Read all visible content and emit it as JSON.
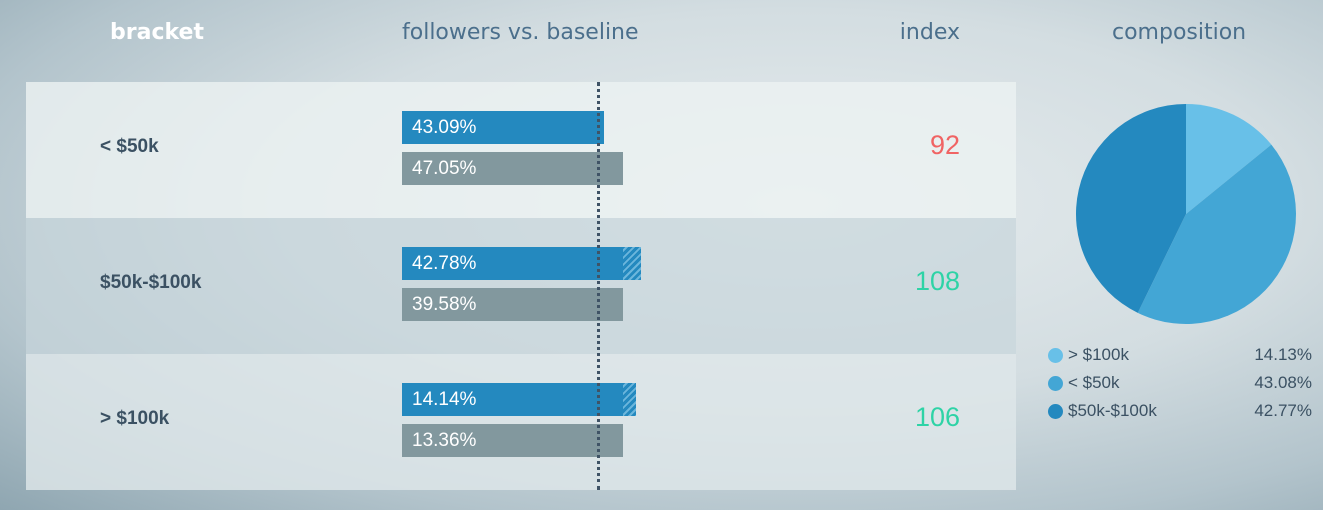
{
  "headers": {
    "bracket": "bracket",
    "followers": "followers vs. baseline",
    "index": "index",
    "composition": "composition"
  },
  "colors": {
    "followers_bar": "#2489bf",
    "baseline_bar": "#82989e",
    "index_low": "#f06464",
    "index_high": "#2ed3a6",
    "pie": [
      "#68c0e8",
      "#43a6d5",
      "#2489bf"
    ]
  },
  "rows": [
    {
      "bracket": "< $50k",
      "followers_label": "43.09%",
      "baseline_label": "47.05%",
      "index": "92"
    },
    {
      "bracket": "$50k-$100k",
      "followers_label": "42.78%",
      "baseline_label": "39.58%",
      "index": "108"
    },
    {
      "bracket": "> $100k",
      "followers_label": "14.14%",
      "baseline_label": "13.36%",
      "index": "106"
    }
  ],
  "legend": [
    {
      "label": "> $100k",
      "pct": "14.13%"
    },
    {
      "label": "< $50k",
      "pct": "43.08%"
    },
    {
      "label": "$50k-$100k",
      "pct": "42.77%"
    }
  ],
  "chart_data": [
    {
      "type": "bar",
      "title": "followers vs. baseline",
      "categories": [
        "< $50k",
        "$50k-$100k",
        "> $100k"
      ],
      "series": [
        {
          "values": [
            43.09,
            42.78,
            14.14
          ]
        },
        {
          "values": [
            47.05,
            39.58,
            13.36
          ]
        }
      ],
      "index": [
        92,
        108,
        106
      ]
    },
    {
      "type": "pie",
      "title": "composition",
      "categories": [
        "> $100k",
        "< $50k",
        "$50k-$100k"
      ],
      "values": [
        14.13,
        43.08,
        42.77
      ]
    }
  ]
}
